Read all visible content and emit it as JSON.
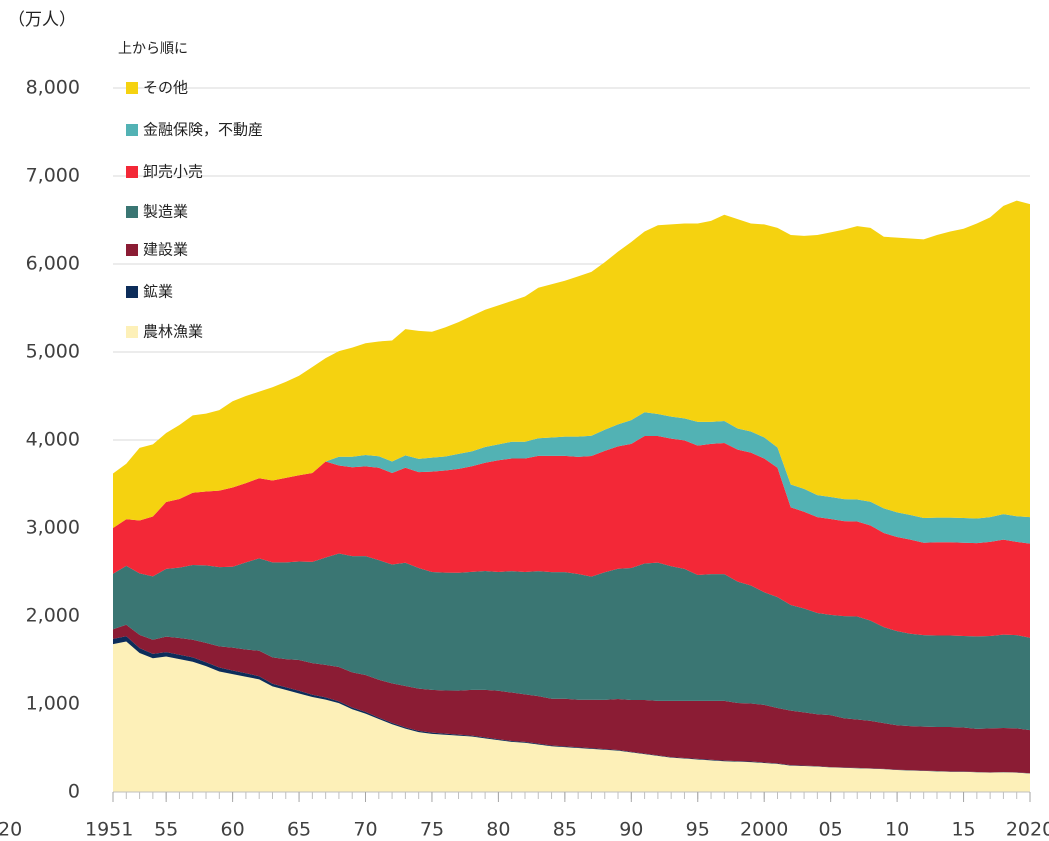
{
  "chart_data": {
    "type": "stacked_area",
    "y_unit_label": "（万人）",
    "legend_title": "上から順に",
    "annotations": [
      "20"
    ],
    "x": [
      1951,
      1952,
      1953,
      1954,
      1955,
      1956,
      1957,
      1958,
      1959,
      1960,
      1961,
      1962,
      1963,
      1964,
      1965,
      1966,
      1967,
      1968,
      1969,
      1970,
      1971,
      1972,
      1973,
      1974,
      1975,
      1976,
      1977,
      1978,
      1979,
      1980,
      1981,
      1982,
      1983,
      1984,
      1985,
      1986,
      1987,
      1988,
      1989,
      1990,
      1991,
      1992,
      1993,
      1994,
      1995,
      1996,
      1997,
      1998,
      1999,
      2000,
      2001,
      2002,
      2003,
      2004,
      2005,
      2006,
      2007,
      2008,
      2009,
      2010,
      2011,
      2012,
      2013,
      2014,
      2015,
      2016,
      2017,
      2018,
      2019,
      2020
    ],
    "xlim": [
      1951,
      2020
    ],
    "xticks": [
      {
        "value": 1951,
        "label": "1951"
      },
      {
        "value": 1955,
        "label": "55"
      },
      {
        "value": 1960,
        "label": "60"
      },
      {
        "value": 1965,
        "label": "65"
      },
      {
        "value": 1970,
        "label": "70"
      },
      {
        "value": 1975,
        "label": "75"
      },
      {
        "value": 1980,
        "label": "80"
      },
      {
        "value": 1985,
        "label": "85"
      },
      {
        "value": 1990,
        "label": "90"
      },
      {
        "value": 1995,
        "label": "95"
      },
      {
        "value": 2000,
        "label": "2000"
      },
      {
        "value": 2005,
        "label": "05"
      },
      {
        "value": 2010,
        "label": "10"
      },
      {
        "value": 2015,
        "label": "15"
      },
      {
        "value": 2020,
        "label": "2020"
      }
    ],
    "ylim": [
      0,
      8000
    ],
    "yticks": [
      0,
      {
        "value": 1000,
        "label": "1,000"
      },
      {
        "value": 2000,
        "label": "2,000"
      },
      {
        "value": 3000,
        "label": "3,000"
      },
      {
        "value": 4000,
        "label": "4,000"
      },
      {
        "value": 5000,
        "label": "5,000"
      },
      {
        "value": 6000,
        "label": "6,000"
      },
      {
        "value": 7000,
        "label": "7,000"
      },
      {
        "value": 8000,
        "label": "8,000"
      }
    ],
    "grid": true,
    "legend": "top-left",
    "series": [
      {
        "name": "農林漁業",
        "color": "#fdf0b8",
        "values": [
          1680,
          1710,
          1580,
          1520,
          1540,
          1510,
          1480,
          1430,
          1370,
          1340,
          1310,
          1280,
          1200,
          1160,
          1120,
          1080,
          1050,
          1010,
          940,
          890,
          830,
          770,
          720,
          680,
          660,
          650,
          640,
          630,
          610,
          590,
          570,
          560,
          540,
          520,
          510,
          500,
          490,
          480,
          470,
          450,
          430,
          410,
          390,
          380,
          370,
          360,
          350,
          345,
          340,
          330,
          320,
          300,
          295,
          290,
          280,
          275,
          270,
          265,
          260,
          250,
          245,
          240,
          235,
          230,
          230,
          225,
          220,
          225,
          220,
          210
        ]
      },
      {
        "name": "鉱業",
        "color": "#0d2d5a",
        "values": [
          60,
          60,
          55,
          50,
          50,
          50,
          50,
          45,
          45,
          40,
          40,
          35,
          30,
          30,
          30,
          25,
          25,
          20,
          20,
          20,
          15,
          15,
          15,
          15,
          15,
          13,
          12,
          11,
          11,
          10,
          10,
          10,
          10,
          9,
          9,
          8,
          8,
          7,
          7,
          6,
          6,
          6,
          6,
          6,
          6,
          6,
          6,
          6,
          6,
          5,
          5,
          5,
          5,
          4,
          3,
          3,
          4,
          3,
          3,
          3,
          3,
          3,
          3,
          3,
          3,
          3,
          3,
          3,
          3,
          3
        ]
      },
      {
        "name": "建設業",
        "color": "#8b1c34",
        "values": [
          110,
          130,
          150,
          160,
          175,
          190,
          200,
          220,
          240,
          260,
          270,
          290,
          300,
          320,
          350,
          360,
          370,
          390,
          400,
          420,
          430,
          450,
          470,
          480,
          485,
          490,
          500,
          520,
          540,
          550,
          550,
          540,
          540,
          530,
          540,
          540,
          550,
          560,
          580,
          590,
          610,
          620,
          640,
          650,
          660,
          670,
          680,
          660,
          660,
          655,
          630,
          620,
          605,
          590,
          590,
          560,
          550,
          540,
          520,
          505,
          500,
          500,
          500,
          505,
          500,
          490,
          500,
          500,
          500,
          490
        ]
      },
      {
        "name": "製造業",
        "color": "#3a7673",
        "values": [
          630,
          670,
          700,
          720,
          770,
          800,
          850,
          880,
          900,
          920,
          990,
          1050,
          1080,
          1100,
          1120,
          1150,
          1220,
          1290,
          1320,
          1350,
          1360,
          1350,
          1400,
          1370,
          1340,
          1340,
          1340,
          1340,
          1350,
          1350,
          1380,
          1390,
          1420,
          1440,
          1440,
          1430,
          1400,
          1450,
          1480,
          1500,
          1550,
          1570,
          1530,
          1500,
          1430,
          1440,
          1440,
          1380,
          1340,
          1280,
          1260,
          1200,
          1180,
          1150,
          1140,
          1160,
          1170,
          1140,
          1090,
          1070,
          1050,
          1040,
          1040,
          1040,
          1040,
          1050,
          1050,
          1060,
          1060,
          1050
        ]
      },
      {
        "name": "卸売小売",
        "color": "#f32837",
        "values": [
          520,
          530,
          600,
          680,
          760,
          780,
          820,
          840,
          870,
          900,
          900,
          910,
          930,
          960,
          980,
          1010,
          1090,
          1000,
          1010,
          1020,
          1050,
          1040,
          1080,
          1090,
          1140,
          1160,
          1180,
          1200,
          1230,
          1270,
          1280,
          1290,
          1310,
          1320,
          1320,
          1330,
          1370,
          1380,
          1390,
          1410,
          1450,
          1440,
          1450,
          1460,
          1470,
          1480,
          1490,
          1500,
          1510,
          1520,
          1470,
          1110,
          1100,
          1090,
          1090,
          1080,
          1080,
          1080,
          1070,
          1070,
          1070,
          1050,
          1060,
          1060,
          1060,
          1060,
          1070,
          1080,
          1060,
          1070
        ]
      },
      {
        "name": "金融保険，不動産",
        "color": "#52b2b4",
        "values": [
          0,
          0,
          0,
          0,
          0,
          0,
          0,
          0,
          0,
          0,
          0,
          0,
          0,
          0,
          0,
          0,
          0,
          100,
          120,
          130,
          130,
          130,
          140,
          150,
          160,
          160,
          170,
          170,
          180,
          180,
          190,
          190,
          200,
          210,
          220,
          230,
          230,
          240,
          250,
          270,
          270,
          250,
          250,
          250,
          270,
          250,
          250,
          240,
          240,
          240,
          230,
          260,
          260,
          250,
          250,
          250,
          250,
          270,
          280,
          280,
          280,
          280,
          280,
          280,
          280,
          280,
          280,
          290,
          290,
          300
        ]
      },
      {
        "name": "その他",
        "color": "#f5d210",
        "values": [
          620,
          630,
          825,
          820,
          785,
          840,
          880,
          885,
          915,
          980,
          990,
          985,
          1060,
          1090,
          1130,
          1205,
          1175,
          1200,
          1240,
          1270,
          1305,
          1375,
          1435,
          1455,
          1430,
          1467,
          1498,
          1539,
          1559,
          1580,
          1600,
          1650,
          1710,
          1741,
          1771,
          1822,
          1862,
          1903,
          1963,
          2024,
          2054,
          2144,
          2184,
          2214,
          2254,
          2284,
          2344,
          2379,
          2364,
          2420,
          2495,
          2835,
          2875,
          2956,
          3007,
          3062,
          3106,
          3112,
          3087,
          3122,
          3142,
          3167,
          3212,
          3252,
          3287,
          3352,
          3407,
          3502,
          3587,
          3557
        ]
      }
    ]
  }
}
